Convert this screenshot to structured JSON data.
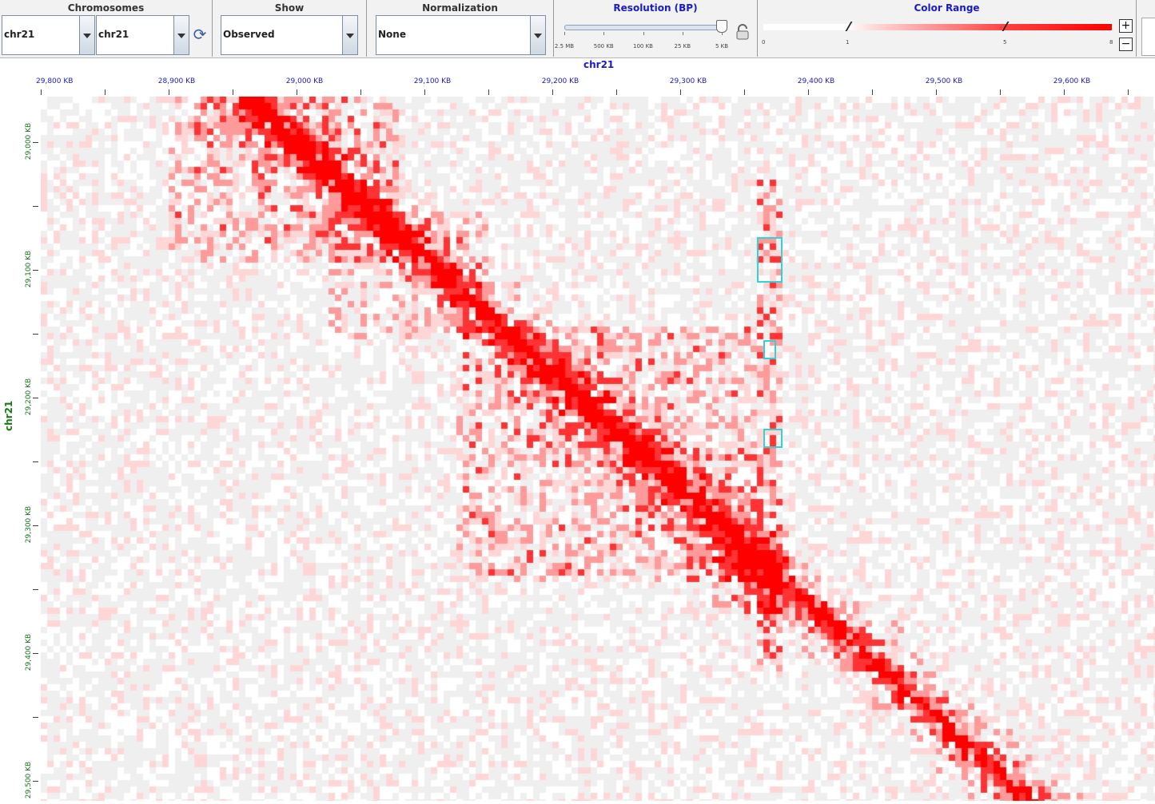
{
  "toolbar": {
    "chromosomes": {
      "title": "Chromosomes",
      "chrom_x": "chr21",
      "chrom_y": "chr21"
    },
    "show": {
      "title": "Show",
      "value": "Observed"
    },
    "normalization": {
      "title": "Normalization",
      "value": "None"
    },
    "resolution": {
      "title": "Resolution (BP)",
      "ticks": [
        "2.5 MB",
        "500 KB",
        "100 KB",
        "25 KB",
        "5 KB"
      ],
      "selected": "5 KB"
    },
    "color_range": {
      "title": "Color Range",
      "min": "0",
      "low_thumb": "1",
      "high_thumb": "5",
      "max": "8"
    },
    "zoom_in": "+",
    "zoom_out": "−"
  },
  "axes": {
    "x_chrom": "chr21",
    "y_chrom": "chr21",
    "x_ticks": [
      "29,800 KB",
      "28,900 KB",
      "29,000 KB",
      "29,100 KB",
      "29,200 KB",
      "29,300 KB",
      "29,400 KB",
      "29,500 KB",
      "29,600 KB"
    ],
    "y_ticks": [
      "29,000 KB",
      "29,100 KB",
      "29,200 KB",
      "29,300 KB",
      "29,400 KB",
      "29,500 KB"
    ]
  },
  "colors": {
    "contact": "#ff0000",
    "background": "#efefef",
    "loop_box": "#2fd4d4",
    "x_axis": "#1a1acc",
    "y_axis": "#137a13"
  }
}
